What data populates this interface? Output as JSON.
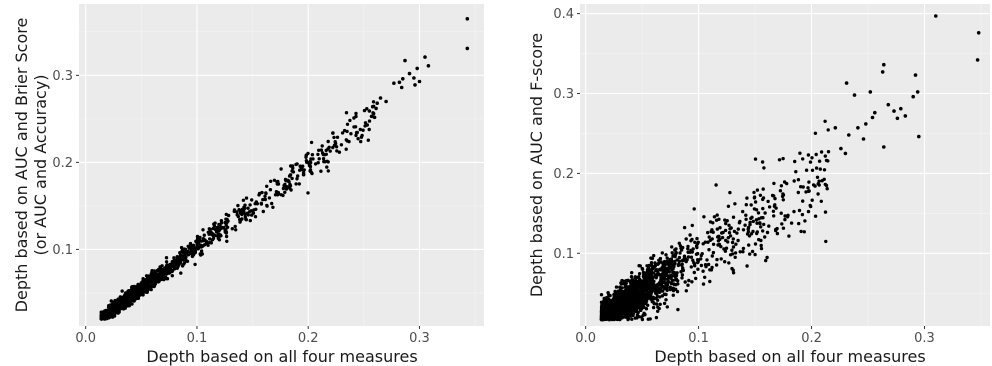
{
  "colors": {
    "panel_background": "#ebebeb",
    "grid_major": "#ffffff",
    "grid_minor": "#f5f5f5",
    "point": "#000000",
    "tick_text": "#4d4d4d",
    "axis_text": "#1a1a1a"
  },
  "chart_data": [
    {
      "type": "scatter",
      "title": "",
      "xlabel": "Depth based on all four measures",
      "ylabel_lines": [
        "Depth based on AUC and Brier Score",
        "(or AUC and Accuracy)"
      ],
      "xlim": [
        -0.006,
        0.358
      ],
      "ylim": [
        0.012,
        0.382
      ],
      "x_ticks": [
        0.0,
        0.1,
        0.2,
        0.3
      ],
      "x_tick_labels": [
        "0.0",
        "0.1",
        "0.2",
        "0.3"
      ],
      "y_ticks": [
        0.1,
        0.2,
        0.3
      ],
      "y_tick_labels": [
        "0.1",
        "0.2",
        "0.3"
      ],
      "grid": true,
      "point_count_approx": 1800,
      "cloud_spec": {
        "x_min": 0.014,
        "x_mode": 0.045,
        "x_max": 0.26,
        "slope": 0.94,
        "intercept": 0.008,
        "noise_sd": 0.0045
      },
      "outliers": [
        {
          "x": 0.343,
          "y": 0.365
        },
        {
          "x": 0.343,
          "y": 0.331
        },
        {
          "x": 0.305,
          "y": 0.321
        },
        {
          "x": 0.308,
          "y": 0.311
        },
        {
          "x": 0.298,
          "y": 0.308
        },
        {
          "x": 0.287,
          "y": 0.317
        },
        {
          "x": 0.291,
          "y": 0.302
        },
        {
          "x": 0.295,
          "y": 0.297
        },
        {
          "x": 0.3,
          "y": 0.293
        },
        {
          "x": 0.296,
          "y": 0.289
        },
        {
          "x": 0.285,
          "y": 0.296
        },
        {
          "x": 0.282,
          "y": 0.292
        },
        {
          "x": 0.277,
          "y": 0.291
        },
        {
          "x": 0.284,
          "y": 0.286
        },
        {
          "x": 0.265,
          "y": 0.274
        },
        {
          "x": 0.27,
          "y": 0.27
        },
        {
          "x": 0.262,
          "y": 0.268
        },
        {
          "x": 0.258,
          "y": 0.264
        },
        {
          "x": 0.261,
          "y": 0.262
        },
        {
          "x": 0.255,
          "y": 0.259
        }
      ]
    },
    {
      "type": "scatter",
      "title": "",
      "xlabel": "Depth based on all four measures",
      "ylabel_lines": [
        "Depth based on AUC and F-score"
      ],
      "xlim": [
        -0.005,
        0.358
      ],
      "ylim": [
        0.009,
        0.412
      ],
      "x_ticks": [
        0.0,
        0.1,
        0.2,
        0.3
      ],
      "x_tick_labels": [
        "0.0",
        "0.1",
        "0.2",
        "0.3"
      ],
      "y_ticks": [
        0.1,
        0.2,
        0.3,
        0.4
      ],
      "y_tick_labels": [
        "0.1",
        "0.2",
        "0.3",
        "0.4"
      ],
      "grid": true,
      "point_count_approx": 1800,
      "cloud_spec": {
        "x_min": 0.014,
        "x_mode": 0.045,
        "x_max": 0.215,
        "slope": 0.9,
        "intercept": 0.008,
        "noise_sd": 0.014
      },
      "outliers": [
        {
          "x": 0.31,
          "y": 0.397
        },
        {
          "x": 0.348,
          "y": 0.376
        },
        {
          "x": 0.347,
          "y": 0.342
        },
        {
          "x": 0.264,
          "y": 0.336
        },
        {
          "x": 0.263,
          "y": 0.327
        },
        {
          "x": 0.292,
          "y": 0.323
        },
        {
          "x": 0.294,
          "y": 0.302
        },
        {
          "x": 0.29,
          "y": 0.296
        },
        {
          "x": 0.238,
          "y": 0.298
        },
        {
          "x": 0.252,
          "y": 0.302
        },
        {
          "x": 0.231,
          "y": 0.313
        },
        {
          "x": 0.268,
          "y": 0.286
        },
        {
          "x": 0.279,
          "y": 0.281
        },
        {
          "x": 0.273,
          "y": 0.278
        },
        {
          "x": 0.283,
          "y": 0.272
        },
        {
          "x": 0.276,
          "y": 0.269
        },
        {
          "x": 0.256,
          "y": 0.276
        },
        {
          "x": 0.254,
          "y": 0.27
        },
        {
          "x": 0.295,
          "y": 0.246
        },
        {
          "x": 0.264,
          "y": 0.233
        },
        {
          "x": 0.248,
          "y": 0.262
        },
        {
          "x": 0.241,
          "y": 0.257
        },
        {
          "x": 0.246,
          "y": 0.243
        },
        {
          "x": 0.233,
          "y": 0.248
        },
        {
          "x": 0.221,
          "y": 0.257
        },
        {
          "x": 0.226,
          "y": 0.231
        },
        {
          "x": 0.23,
          "y": 0.225
        }
      ]
    }
  ]
}
